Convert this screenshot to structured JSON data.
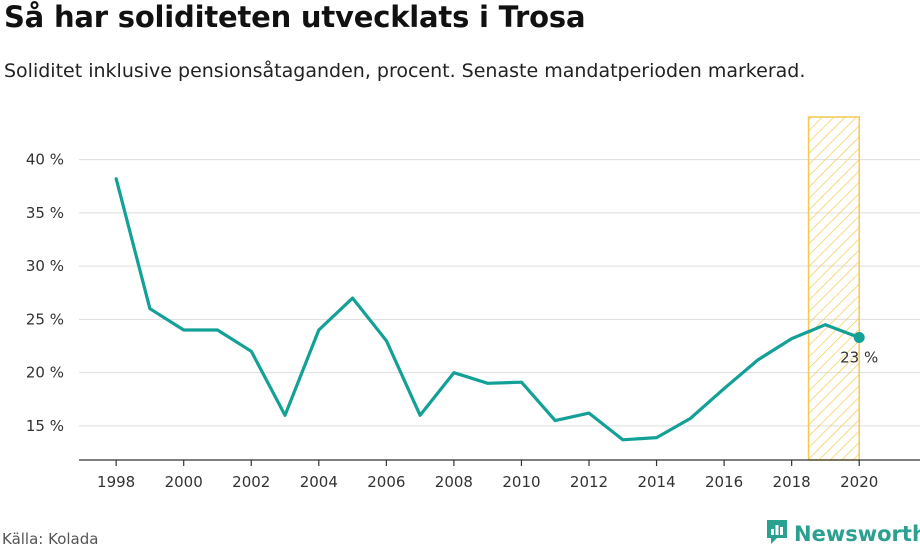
{
  "header": {
    "title": "Så har soliditeten utvecklats i Trosa",
    "subtitle": "Soliditet inklusive pensionsåtaganden, procent. Senaste mandatperioden markerad."
  },
  "footer": {
    "source": "Källa: Kolada",
    "brand": "Newsworthy"
  },
  "colors": {
    "line": "#13a096",
    "highlight_stroke": "#f4c952",
    "grid": "#dddddd",
    "axis": "#333333"
  },
  "chart_data": {
    "type": "line",
    "title": "Så har soliditeten utvecklats i Trosa",
    "subtitle": "Soliditet inklusive pensionsåtaganden, procent. Senaste mandatperioden markerad.",
    "x": [
      1998,
      1999,
      2000,
      2001,
      2002,
      2003,
      2004,
      2005,
      2006,
      2007,
      2008,
      2009,
      2010,
      2011,
      2012,
      2013,
      2014,
      2015,
      2016,
      2017,
      2018,
      2019,
      2020
    ],
    "series": [
      {
        "values": [
          38.2,
          26.0,
          24.0,
          24.0,
          22.0,
          16.0,
          24.0,
          27.0,
          23.0,
          16.0,
          20.0,
          19.0,
          19.1,
          15.5,
          16.2,
          13.7,
          13.9,
          15.7,
          18.5,
          21.2,
          23.2,
          24.5,
          23.3
        ]
      }
    ],
    "xticks": [
      1998,
      2000,
      2002,
      2004,
      2006,
      2008,
      2010,
      2012,
      2014,
      2016,
      2018,
      2020
    ],
    "xtick_labels": [
      "1998",
      "2000",
      "2002",
      "2004",
      "2006",
      "2008",
      "2010",
      "2012",
      "2014",
      "2016",
      "2018",
      "2020"
    ],
    "yticks": [
      15,
      20,
      25,
      30,
      35,
      40
    ],
    "ytick_labels": [
      "15 %",
      "20 %",
      "25 %",
      "30 %",
      "35 %",
      "40 %"
    ],
    "xlim": [
      1996.9,
      2021.8
    ],
    "ylim": [
      11.8,
      44
    ],
    "highlight": {
      "x_from": 2018.5,
      "x_to": 2020,
      "pattern": "diagonal-hatch"
    },
    "end_label": "23 %",
    "grid": "horizontal",
    "xlabel": "",
    "ylabel": ""
  }
}
